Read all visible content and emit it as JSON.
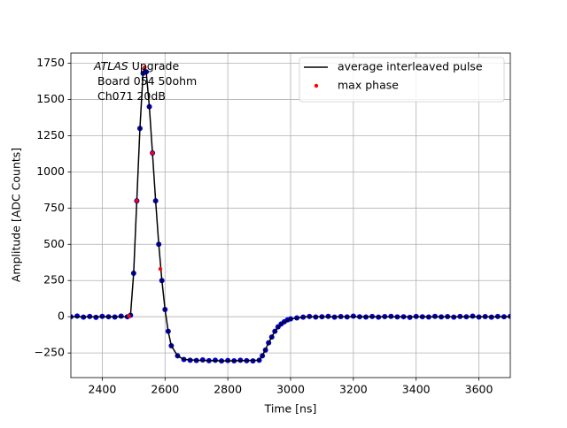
{
  "chart_data": {
    "type": "line",
    "xlabel": "Time [ns]",
    "ylabel": "Amplitude [ADC Counts]",
    "annotation": [
      "ATLAS",
      "Upgrade",
      "Board 054 50ohm",
      "Ch071 20dB"
    ],
    "xlim": [
      2300,
      3700
    ],
    "ylim": [
      -420,
      1820
    ],
    "xticks": [
      2400,
      2600,
      2800,
      3000,
      3200,
      3400,
      3600
    ],
    "yticks": [
      {
        "value": -250,
        "label": "−250"
      },
      0,
      250,
      500,
      750,
      1000,
      1250,
      1500,
      1750
    ],
    "grid": true,
    "legend": "upper right",
    "series": [
      {
        "color": "#0000cc",
        "style": "dots",
        "x": [
          2300,
          2320,
          2340,
          2360,
          2380,
          2400,
          2420,
          2440,
          2460,
          2480,
          2490,
          2500,
          2510,
          2520,
          2530,
          2540,
          2550,
          2560,
          2570,
          2580,
          2590,
          2600,
          2610,
          2620,
          2640,
          2660,
          2680,
          2700,
          2720,
          2740,
          2760,
          2780,
          2800,
          2820,
          2840,
          2860,
          2880,
          2900,
          2910,
          2920,
          2930,
          2940,
          2950,
          2960,
          2970,
          2980,
          2990,
          3000,
          3020,
          3040,
          3060,
          3080,
          3100,
          3120,
          3140,
          3160,
          3180,
          3200,
          3220,
          3240,
          3260,
          3280,
          3300,
          3320,
          3340,
          3360,
          3380,
          3400,
          3420,
          3440,
          3460,
          3480,
          3500,
          3520,
          3540,
          3560,
          3580,
          3600,
          3620,
          3640,
          3660,
          3680,
          3700
        ],
        "values": [
          0,
          5,
          -3,
          2,
          -4,
          3,
          0,
          -2,
          4,
          0,
          10,
          300,
          800,
          1300,
          1680,
          1690,
          1450,
          1130,
          800,
          500,
          250,
          50,
          -100,
          -200,
          -270,
          -295,
          -300,
          -302,
          -298,
          -303,
          -300,
          -305,
          -302,
          -304,
          -300,
          -303,
          -305,
          -300,
          -270,
          -230,
          -180,
          -140,
          -100,
          -70,
          -50,
          -35,
          -22,
          -15,
          -8,
          -3,
          2,
          -2,
          0,
          3,
          -3,
          1,
          -1,
          4,
          0,
          -2,
          2,
          -3,
          1,
          3,
          -1,
          0,
          -4,
          2,
          0,
          -2,
          3,
          -1,
          1,
          -3,
          2,
          0,
          4,
          -2,
          1,
          -3,
          2,
          0,
          3
        ]
      },
      {
        "name": "average interleaved pulse",
        "color": "#000000",
        "style": "line",
        "x": [
          2300,
          2400,
          2480,
          2490,
          2500,
          2510,
          2520,
          2530,
          2535,
          2540,
          2550,
          2560,
          2570,
          2580,
          2590,
          2600,
          2610,
          2620,
          2640,
          2660,
          2700,
          2800,
          2900,
          2910,
          2930,
          2950,
          2970,
          3000,
          3050,
          3200,
          3400,
          3600,
          3700
        ],
        "values": [
          0,
          0,
          0,
          10,
          300,
          800,
          1300,
          1680,
          1720,
          1690,
          1450,
          1130,
          800,
          500,
          250,
          50,
          -100,
          -200,
          -270,
          -295,
          -300,
          -305,
          -300,
          -270,
          -180,
          -100,
          -50,
          -15,
          0,
          0,
          0,
          0,
          0
        ]
      },
      {
        "name": "max phase",
        "color": "#ff0000",
        "style": "dots",
        "x": [
          2485,
          2510,
          2535,
          2560,
          2585
        ],
        "values": [
          5,
          800,
          1720,
          1130,
          330
        ]
      }
    ]
  }
}
